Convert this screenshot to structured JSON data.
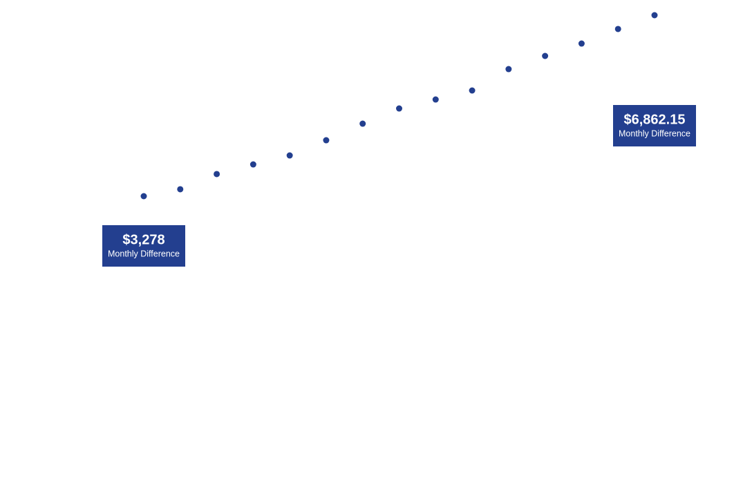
{
  "chart_data": {
    "type": "dot",
    "categories": [
      null,
      null,
      null,
      null,
      null,
      null,
      null,
      null,
      null,
      null,
      null,
      null,
      null,
      null,
      null
    ],
    "values": [
      3278,
      3415,
      3716,
      3907,
      4085,
      4386,
      4714,
      5015,
      5193,
      5371,
      5795,
      6055,
      6301,
      6589,
      6862.15
    ],
    "value_labels": [
      "$3,278",
      null,
      null,
      null,
      null,
      null,
      null,
      null,
      null,
      null,
      null,
      null,
      null,
      null,
      "$6,862.15"
    ],
    "annotation": "Monthly Difference",
    "color": "#233f8f"
  }
}
